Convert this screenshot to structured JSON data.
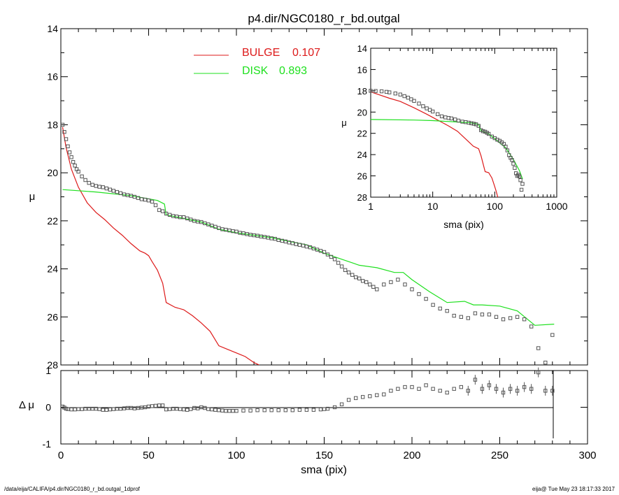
{
  "page": {
    "title": "p4.dir/NGC0180_r_bd.outgal",
    "footer_left": "/data/eija/CALIFA/p4.dir/NGC0180_r_bd.outgal_1dprof",
    "footer_right": "eija@  Tue May 23 18:17:33 2017"
  },
  "colors": {
    "bulge": "#dd1a1a",
    "disk": "#1ee01e",
    "data": "#555555",
    "axes": "#000000"
  },
  "legend": [
    {
      "label": "BULGE",
      "value": "0.107",
      "color": "#dd1a1a"
    },
    {
      "label": "DISK",
      "value": "0.893",
      "color": "#1ee01e"
    }
  ],
  "chart_data": [
    {
      "id": "main",
      "type": "line",
      "title": "p4.dir/NGC0180_r_bd.outgal",
      "ylabel": "μ",
      "xlim": [
        0,
        300
      ],
      "ylim": [
        28,
        14
      ],
      "yticks": [
        14,
        16,
        18,
        20,
        22,
        24,
        26,
        28
      ],
      "series": [
        {
          "name": "BULGE",
          "style": "line",
          "color": "#dd1a1a",
          "x": [
            1,
            3,
            6,
            10,
            15,
            20,
            25,
            30,
            35,
            40,
            45,
            48,
            50,
            52,
            55,
            58,
            59,
            60,
            65,
            70,
            75,
            80,
            85,
            90,
            95,
            100,
            105,
            110,
            113
          ],
          "y": [
            18.1,
            18.95,
            19.85,
            20.6,
            21.25,
            21.65,
            21.95,
            22.3,
            22.6,
            22.95,
            23.25,
            23.35,
            23.45,
            23.7,
            24.05,
            24.6,
            25.0,
            25.4,
            25.6,
            25.7,
            25.95,
            26.25,
            26.6,
            27.2,
            27.35,
            27.5,
            27.65,
            27.9,
            28.0
          ]
        },
        {
          "name": "DISK",
          "style": "line",
          "color": "#1ee01e",
          "x": [
            1,
            20,
            40,
            55,
            59,
            60,
            70,
            80,
            90,
            100,
            110,
            120,
            130,
            140,
            150,
            160,
            170,
            180,
            190,
            195,
            200,
            210,
            220,
            230,
            235,
            240,
            250,
            260,
            270,
            281
          ],
          "y": [
            20.7,
            20.8,
            20.95,
            21.15,
            21.3,
            21.75,
            21.9,
            22.05,
            22.35,
            22.5,
            22.6,
            22.7,
            22.85,
            23.0,
            23.35,
            23.6,
            23.85,
            23.95,
            24.15,
            24.15,
            24.45,
            24.95,
            25.4,
            25.35,
            25.5,
            25.5,
            25.55,
            25.75,
            26.35,
            26.3
          ]
        },
        {
          "name": "data",
          "style": "markers",
          "color": "#555555",
          "x": [
            1,
            2,
            3,
            4,
            5,
            6,
            7,
            8,
            9,
            10,
            12,
            14,
            16,
            18,
            20,
            22,
            24,
            26,
            28,
            30,
            32,
            34,
            36,
            38,
            40,
            42,
            44,
            46,
            48,
            50,
            52,
            54,
            56,
            58,
            60,
            62,
            64,
            66,
            68,
            70,
            72,
            74,
            76,
            78,
            80,
            82,
            84,
            86,
            88,
            90,
            92,
            94,
            96,
            98,
            100,
            102,
            104,
            106,
            108,
            110,
            112,
            114,
            116,
            118,
            120,
            122,
            124,
            126,
            128,
            130,
            132,
            134,
            136,
            138,
            140,
            142,
            144,
            146,
            148,
            150,
            152,
            154,
            156,
            158,
            160,
            162,
            164,
            166,
            168,
            170,
            172,
            174,
            176,
            178,
            180,
            184,
            188,
            192,
            196,
            200,
            204,
            208,
            212,
            216,
            220,
            224,
            228,
            232,
            236,
            240,
            244,
            248,
            252,
            256,
            260,
            264,
            268,
            272,
            276,
            280
          ],
          "y": [
            18.0,
            18.3,
            18.6,
            18.9,
            19.15,
            19.35,
            19.55,
            19.7,
            19.85,
            19.95,
            20.15,
            20.3,
            20.42,
            20.5,
            20.55,
            20.58,
            20.6,
            20.65,
            20.7,
            20.75,
            20.8,
            20.85,
            20.9,
            20.93,
            20.96,
            21.0,
            21.05,
            21.1,
            21.12,
            21.15,
            21.2,
            21.35,
            21.55,
            21.6,
            21.7,
            21.75,
            21.8,
            21.82,
            21.85,
            21.85,
            21.9,
            21.95,
            22.0,
            22.03,
            22.05,
            22.1,
            22.15,
            22.2,
            22.25,
            22.3,
            22.35,
            22.37,
            22.4,
            22.43,
            22.45,
            22.5,
            22.52,
            22.55,
            22.58,
            22.6,
            22.62,
            22.65,
            22.67,
            22.7,
            22.73,
            22.75,
            22.8,
            22.83,
            22.86,
            22.9,
            22.93,
            22.97,
            23.0,
            23.03,
            23.07,
            23.1,
            23.15,
            23.2,
            23.25,
            23.3,
            23.4,
            23.5,
            23.6,
            23.75,
            23.9,
            24.05,
            24.15,
            24.25,
            24.35,
            24.4,
            24.5,
            24.55,
            24.65,
            24.75,
            24.85,
            24.65,
            24.55,
            24.45,
            24.65,
            24.85,
            25.05,
            25.25,
            25.5,
            25.65,
            25.75,
            25.95,
            26.0,
            26.05,
            25.85,
            25.9,
            25.9,
            26.0,
            26.1,
            26.05,
            26.0,
            26.1,
            26.4,
            27.3,
            27.9,
            26.75
          ]
        }
      ]
    },
    {
      "id": "inset",
      "type": "line",
      "xlabel": "sma (pix)",
      "ylabel": "μ",
      "xscale": "log",
      "xlim": [
        1,
        1000
      ],
      "xticks": [
        1,
        10,
        100,
        1000
      ],
      "ylim": [
        28,
        14
      ],
      "yticks": [
        14,
        16,
        18,
        20,
        22,
        24,
        26,
        28
      ],
      "series": [
        {
          "name": "BULGE",
          "style": "line",
          "color": "#dd1a1a",
          "x": [
            1,
            2,
            3,
            5,
            8,
            12,
            18,
            25,
            35,
            45,
            55,
            60,
            70,
            80,
            90,
            100,
            105,
            112
          ],
          "y": [
            18.1,
            18.7,
            19.0,
            19.6,
            20.2,
            20.75,
            21.3,
            21.8,
            22.6,
            23.2,
            23.45,
            24.1,
            25.6,
            25.7,
            26.2,
            27.0,
            27.4,
            28.0
          ]
        },
        {
          "name": "DISK",
          "style": "line",
          "color": "#1ee01e",
          "x": [
            1,
            5,
            10,
            20,
            40,
            55,
            60,
            80,
            100,
            150,
            200,
            250,
            281
          ],
          "y": [
            20.7,
            20.75,
            20.8,
            20.9,
            21.0,
            21.15,
            21.75,
            22.05,
            22.5,
            23.35,
            24.45,
            25.5,
            26.3
          ]
        },
        {
          "name": "data",
          "style": "markers",
          "color": "#555555",
          "x": [
            1,
            1.2,
            1.5,
            1.8,
            2,
            2.5,
            3,
            3.5,
            4,
            4.5,
            5,
            6,
            7,
            8,
            9,
            10,
            12,
            14,
            16,
            18,
            20,
            23,
            26,
            30,
            34,
            38,
            42,
            46,
            50,
            55,
            60,
            65,
            70,
            75,
            80,
            90,
            100,
            110,
            120,
            130,
            140,
            150,
            160,
            170,
            180,
            190,
            200,
            210,
            220,
            230,
            240,
            250,
            260,
            270,
            280
          ],
          "y": [
            18.0,
            18.02,
            18.05,
            18.1,
            18.15,
            18.25,
            18.35,
            18.5,
            18.65,
            18.8,
            18.95,
            19.2,
            19.45,
            19.65,
            19.8,
            19.95,
            20.2,
            20.4,
            20.5,
            20.55,
            20.6,
            20.7,
            20.8,
            20.9,
            20.95,
            21.0,
            21.05,
            21.1,
            21.15,
            21.3,
            21.7,
            21.8,
            21.85,
            21.95,
            22.05,
            22.3,
            22.45,
            22.6,
            22.7,
            22.85,
            23.0,
            23.25,
            23.6,
            24.05,
            24.3,
            24.5,
            24.85,
            25.25,
            25.75,
            26.0,
            25.9,
            26.05,
            26.4,
            27.3,
            26.75
          ]
        }
      ]
    },
    {
      "id": "residual",
      "type": "scatter",
      "ylabel": "Δ μ",
      "xlabel": "sma (pix)",
      "xlim": [
        0,
        300
      ],
      "xticks": [
        0,
        50,
        100,
        150,
        200,
        250,
        300
      ],
      "ylim": [
        -1,
        1
      ],
      "yticks": [
        -1,
        0,
        1
      ],
      "series": [
        {
          "name": "residual",
          "style": "markers",
          "color": "#555555",
          "x": [
            1,
            2,
            3,
            4,
            6,
            8,
            10,
            12,
            14,
            16,
            18,
            20,
            22,
            24,
            26,
            28,
            30,
            32,
            34,
            36,
            38,
            40,
            42,
            44,
            46,
            48,
            50,
            52,
            54,
            56,
            58,
            60,
            62,
            64,
            66,
            68,
            70,
            72,
            74,
            76,
            78,
            80,
            82,
            84,
            86,
            88,
            90,
            92,
            94,
            96,
            98,
            100,
            104,
            108,
            112,
            116,
            120,
            124,
            128,
            132,
            136,
            140,
            144,
            148,
            150,
            152,
            156,
            160,
            164,
            168,
            172,
            176,
            180,
            184,
            188,
            192,
            196,
            200,
            204,
            208,
            212,
            216,
            220,
            224,
            228,
            232,
            236,
            240,
            244,
            248,
            252,
            256,
            260,
            264,
            268,
            272,
            276,
            280
          ],
          "y": [
            0.02,
            -0.01,
            -0.04,
            -0.05,
            -0.06,
            -0.06,
            -0.05,
            -0.05,
            -0.04,
            -0.04,
            -0.04,
            -0.04,
            -0.05,
            -0.07,
            -0.07,
            -0.06,
            -0.05,
            -0.04,
            -0.04,
            -0.03,
            -0.02,
            -0.02,
            -0.03,
            -0.02,
            -0.01,
            0.0,
            0.02,
            0.03,
            0.04,
            0.05,
            0.05,
            -0.06,
            -0.05,
            -0.04,
            -0.04,
            -0.05,
            -0.06,
            -0.07,
            -0.05,
            -0.02,
            -0.03,
            0.0,
            -0.02,
            -0.05,
            -0.06,
            -0.07,
            -0.08,
            -0.09,
            -0.1,
            -0.1,
            -0.1,
            -0.1,
            -0.09,
            -0.09,
            -0.08,
            -0.08,
            -0.08,
            -0.08,
            -0.08,
            -0.08,
            -0.07,
            -0.07,
            -0.07,
            -0.06,
            -0.05,
            -0.04,
            0.0,
            0.08,
            0.2,
            0.25,
            0.28,
            0.3,
            0.33,
            0.35,
            0.45,
            0.5,
            0.55,
            0.55,
            0.5,
            0.6,
            0.5,
            0.45,
            0.4,
            0.5,
            0.55,
            0.45,
            0.75,
            0.5,
            0.6,
            0.5,
            0.4,
            0.5,
            0.45,
            0.55,
            0.5,
            0.95,
            0.45,
            0.45
          ]
        }
      ]
    }
  ]
}
